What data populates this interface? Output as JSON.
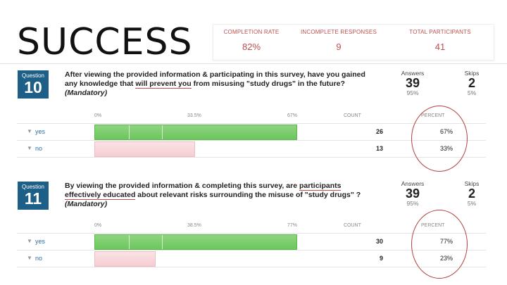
{
  "title": "SUCCESS",
  "stats": [
    {
      "label": "COMPLETION RATE",
      "value": "82%"
    },
    {
      "label": "INCOMPLETE RESPONSES",
      "value": "9"
    },
    {
      "label": "TOTAL PARTICIPANTS",
      "value": "41"
    }
  ],
  "questions": [
    {
      "badge_label": "Question",
      "number": "10",
      "text_pre": "After viewing the provided information & participating in this survey, have you gained any knowledge that ",
      "text_underlined": "will prevent you",
      "text_post": " from misusing \"study drugs\" in the future? ",
      "mandatory": "(Mandatory)",
      "answers_label": "Answers",
      "answers": "39",
      "answers_pct": "95%",
      "skips_label": "Skips",
      "skips": "2",
      "skips_pct": "5%",
      "axis_ticks": [
        "0%",
        "33.5%",
        "67%"
      ],
      "count_header": "COUNT",
      "percent_header": "PERCENT",
      "rows": [
        {
          "label": "yes",
          "count": "26",
          "percent": "67%",
          "value": 0.67
        },
        {
          "label": "no",
          "count": "13",
          "percent": "33%",
          "value": 0.33
        }
      ]
    },
    {
      "badge_label": "Question",
      "number": "11",
      "text_pre": "By viewing the provided information & completing this survey, are ",
      "text_underlined": "participants effectively educated",
      "text_post": " about relevant risks surrounding the misuse of \"study drugs\" ? ",
      "mandatory": "(Mandatory)",
      "answers_label": "Answers",
      "answers": "39",
      "answers_pct": "95%",
      "skips_label": "Skips",
      "skips": "2",
      "skips_pct": "5%",
      "axis_ticks": [
        "0%",
        "38.5%",
        "77%"
      ],
      "count_header": "COUNT",
      "percent_header": "PERCENT",
      "rows": [
        {
          "label": "yes",
          "count": "30",
          "percent": "77%",
          "value": 0.77
        },
        {
          "label": "no",
          "count": "9",
          "percent": "23%",
          "value": 0.23
        }
      ]
    }
  ],
  "icons": {
    "filter": "filter-icon"
  },
  "colors": {
    "accent": "#c0504d",
    "badge": "#1d5f86",
    "yes_bar": "#6cc65d",
    "no_bar": "#f5cdd2"
  }
}
